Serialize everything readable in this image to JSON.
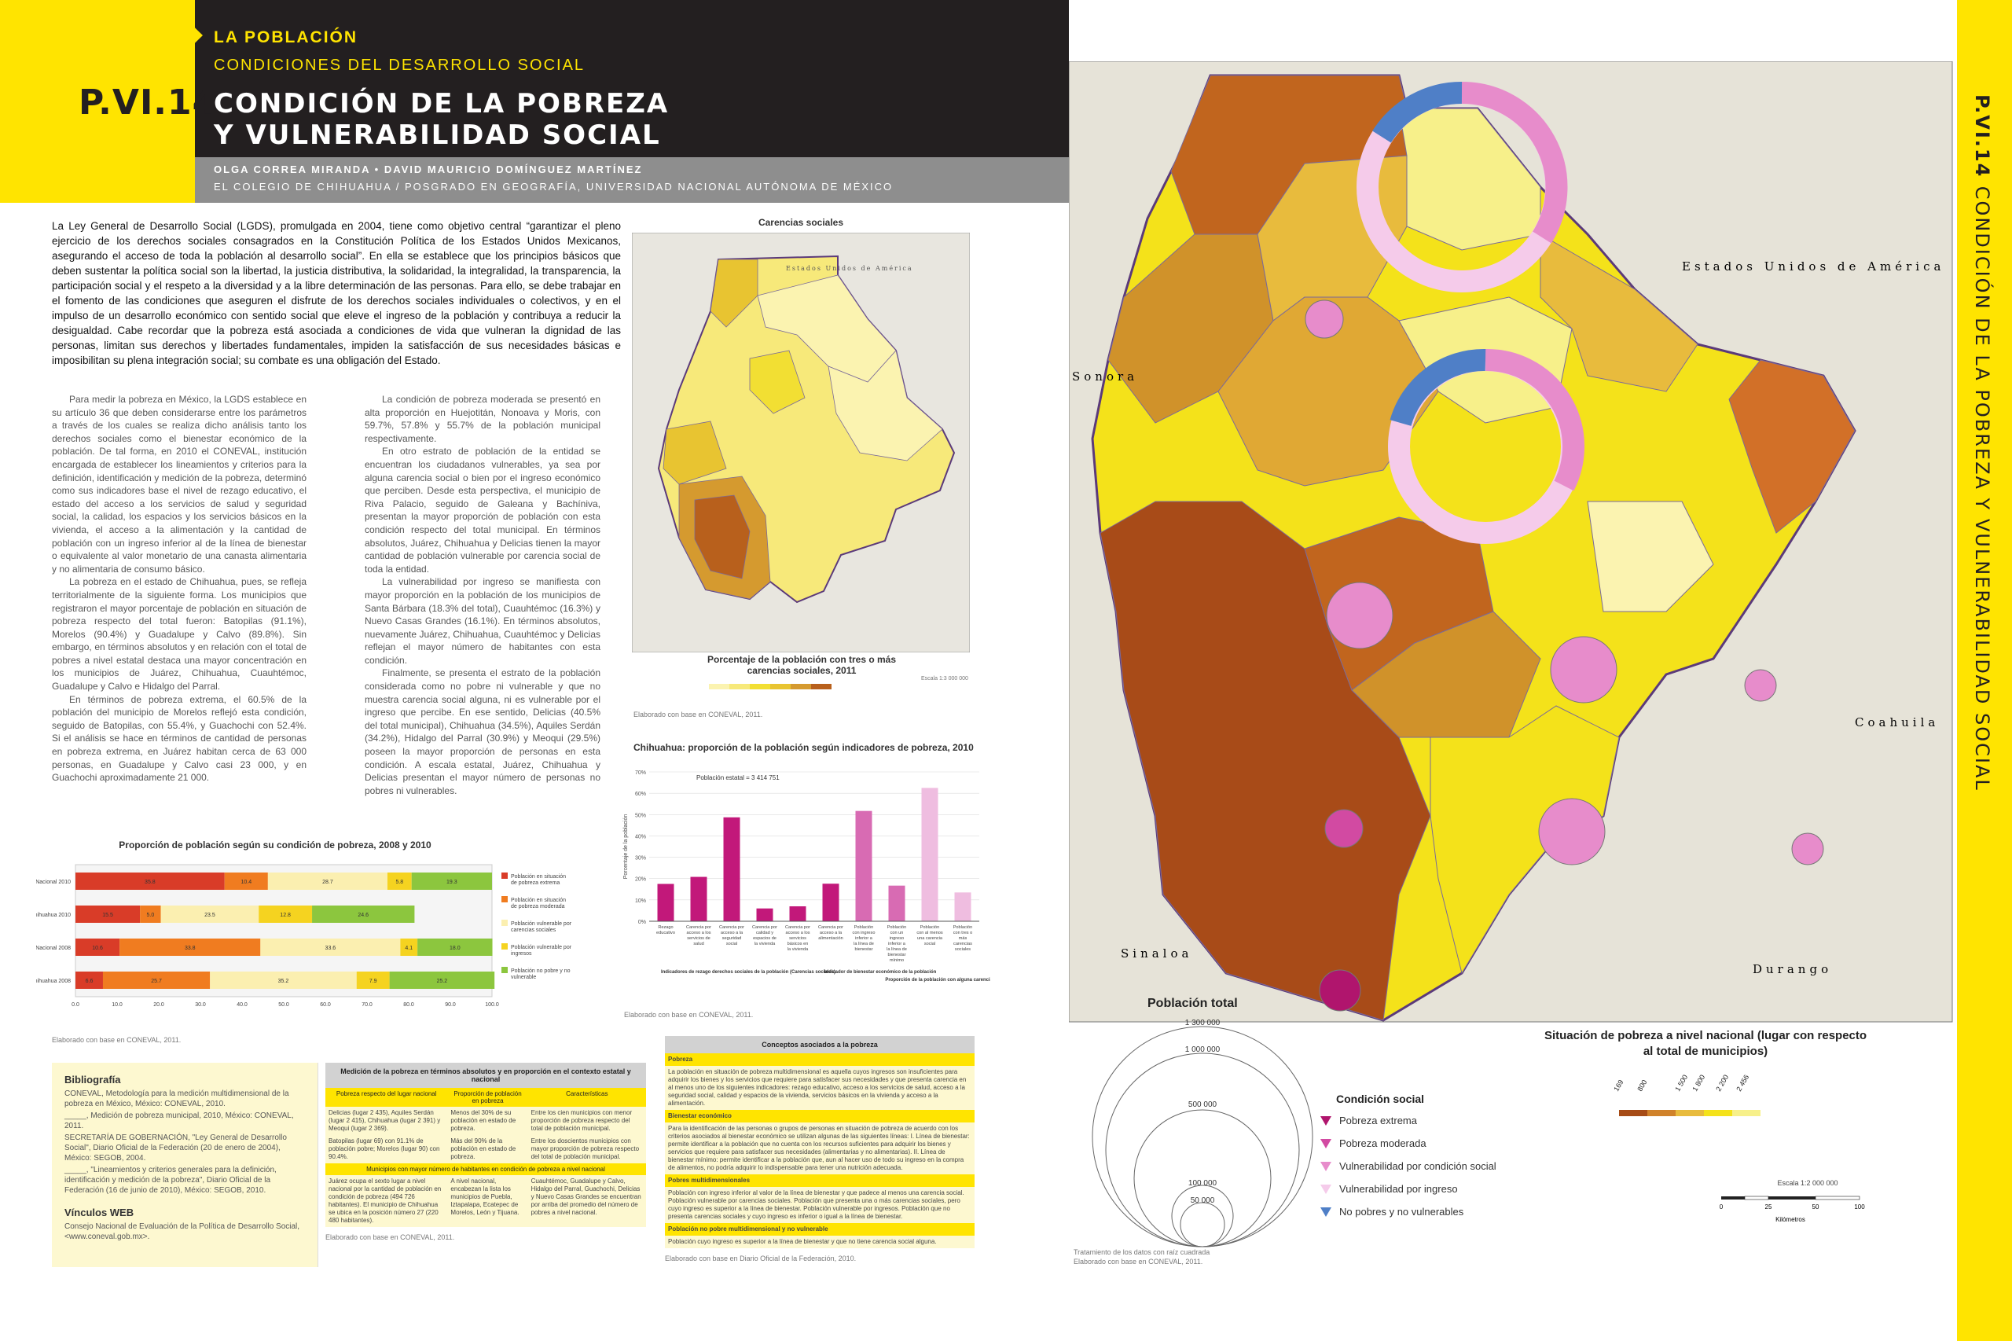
{
  "header": {
    "section": "LA POBLACIÓN",
    "subsection": "CONDICIONES DEL DESARROLLO SOCIAL",
    "code": "P.VI.14",
    "title_line1": "CONDICIÓN DE LA POBREZA",
    "title_line2": "Y VULNERABILIDAD SOCIAL",
    "authors": "OLGA CORREA MIRANDA • DAVID MAURICIO DOMÍNGUEZ MARTÍNEZ",
    "institution": "EL COLEGIO DE CHIHUAHUA / POSGRADO EN GEOGRAFÍA, UNIVERSIDAD NACIONAL AUTÓNOMA DE MÉXICO",
    "side_code": "P.VI.14",
    "side_title": "CONDICIÓN DE LA POBREZA Y VULNERABILIDAD SOCIAL"
  },
  "text": {
    "intro": "La Ley General de Desarrollo Social (LGDS), promulgada en 2004, tiene como objetivo central “garantizar el pleno ejercicio de los derechos sociales consagrados en la Constitución Política de los Estados Unidos Mexicanos, asegurando el acceso de toda la población al desarrollo social”. En ella se establece que los principios básicos que deben sustentar la política social son la libertad, la justicia distributiva, la solidaridad, la integralidad, la transparencia, la participación social y el respeto a la diversidad y a la libre determinación de las personas. Para ello, se debe trabajar en el fomento de las condiciones que aseguren el disfrute de los derechos sociales individuales o colectivos, y en el impulso de un desarrollo económico con sentido social que eleve el ingreso de la población y contribuya a reducir la desigualdad. Cabe recordar que la pobreza está asociada a condiciones de vida que vulneran la dignidad de las personas, limitan sus derechos y libertades fundamentales, impiden la satisfacción de sus necesidades básicas e imposibilitan su plena integración social; su combate es una obligación del Estado.",
    "colA_p1": "Para medir la pobreza en México, la LGDS establece en su artículo 36 que deben considerarse entre los parámetros a través de los cuales se realiza dicho análisis tanto los derechos sociales como el bienestar económico de la población. De tal forma, en 2010 el CONEVAL, institución encargada de establecer los lineamientos y criterios para la definición, identificación y medición de la pobreza, determinó como sus indicadores base el nivel de rezago educativo, el estado del acceso a los servicios de salud y seguridad social, la calidad, los espacios y los servicios básicos en la vivienda, el acceso a la alimentación y la cantidad de población con un ingreso inferior al de la línea de bienestar o equivalente al valor monetario de una canasta alimentaria y no alimentaria de consumo básico.",
    "colA_p2": "La pobreza en el estado de Chihuahua, pues, se refleja territorialmente de la siguiente forma. Los municipios que registraron el mayor porcentaje de población en situación de pobreza respecto del total fueron: Batopilas (91.1%), Morelos (90.4%) y Guadalupe y Calvo (89.8%). Sin embargo, en términos absolutos y en relación con el total de pobres a nivel estatal destaca una mayor concentración en los municipios de Juárez, Chihuahua, Cuauhtémoc, Guadalupe y Calvo e Hidalgo del Parral.",
    "colA_p3": "En términos de pobreza extrema, el 60.5% de la población del municipio de Morelos reflejó esta condición, seguido de Batopilas, con 55.4%, y Guachochi con 52.4%. Si el análisis se hace en términos de cantidad de personas en pobreza extrema, en Juárez habitan cerca de 63 000 personas, en Guadalupe y Calvo casi 23 000, y en Guachochi aproximadamente 21 000.",
    "colB_p1": "La condición de pobreza moderada se presentó en alta proporción en Huejotitán, Nonoava y Moris, con 59.7%, 57.8% y 55.7% de la población municipal respectivamente.",
    "colB_p2": "En otro estrato de población de la entidad se encuentran los ciudadanos vulnerables, ya sea por alguna carencia social o bien por el ingreso económico que perciben. Desde esta perspectiva, el municipio de Riva Palacio, seguido de Galeana y Bachíniva, presentan la mayor proporción de población con esta condición respecto del total municipal. En términos absolutos, Juárez, Chihuahua y Delicias tienen la mayor cantidad de población vulnerable por carencia social de toda la entidad.",
    "colB_p3": "La vulnerabilidad por ingreso se manifiesta con mayor proporción en la población de los municipios de Santa Bárbara (18.3% del total), Cuauhtémoc (16.3%) y Nuevo Casas Grandes (16.1%). En términos absolutos, nuevamente Juárez, Chihuahua, Cuauhtémoc y Delicias reflejan el mayor número de habitantes con esta condición.",
    "colB_p4": "Finalmente, se presenta el estrato de la población considerada como no pobre ni vulnerable y que no muestra carencia social alguna, ni es vulnerable por el ingreso que percibe. En ese sentido, Delicias (40.5% del total municipal), Chihuahua (34.5%), Aquiles Serdán (34.2%), Hidalgo del Parral (30.9%) y Meoqui (29.5%) poseen la mayor proporción de personas en esta condición. A escala estatal, Juárez, Chihuahua y Delicias presentan el mayor número de personas no pobres ni vulnerables."
  },
  "small_map": {
    "title": "Carencias sociales",
    "legend_title": "Porcentaje de la población con tres o más carencias sociales, 2011",
    "country_label": "Estados Unidos de América",
    "scale_label": "Escala 1:3 000 000",
    "caption": "Elaborado con base en CONEVAL, 2011.",
    "colors": [
      "#fbf3b0",
      "#f7e97a",
      "#f2df33",
      "#e8c431",
      "#d59a2f",
      "#b8601c"
    ]
  },
  "chart_data": [
    {
      "type": "bar",
      "title": "Chihuahua: proporción de la población según indicadores de pobreza, 2010",
      "annotation": "Población estatal = 3 414 751",
      "ylabel": "Porcentaje de la población",
      "ylim": [
        0,
        70
      ],
      "yticks": [
        "0%",
        "10%",
        "20%",
        "30%",
        "40%",
        "50%",
        "60%",
        "70%"
      ],
      "categories": [
        "Rezago educativo",
        "Carencia por acceso a los servicios de salud",
        "Carencia por acceso a la seguridad social",
        "Carencia por calidad y espacios de la vivienda",
        "Carencia por acceso a los servicios básicos en la vivienda",
        "Carencia por acceso a la alimentación",
        "Población con ingreso inferior a la línea de bienestar",
        "Población con un ingreso inferior a la línea de bienestar mínimo",
        "Población con al menos una carencia social",
        "Población con tres o más carencias sociales"
      ],
      "values": [
        17.5,
        20.8,
        48.7,
        6.0,
        7.0,
        17.6,
        51.7,
        16.7,
        62.5,
        13.5
      ],
      "colors": [
        "#c2187a",
        "#c2187a",
        "#c2187a",
        "#c2187a",
        "#c2187a",
        "#c2187a",
        "#d86bb3",
        "#d86bb3",
        "#efbde0",
        "#efbde0"
      ],
      "group_labels": [
        "Indicadores de rezago derechos sociales de la población (Carencias sociales)",
        "Indicador de bienestar económico de la población",
        "Proporción de la población con alguna carencia social"
      ],
      "caption": "Elaborado con base en CONEVAL, 2011."
    },
    {
      "type": "bar",
      "orientation": "horizontal-stacked",
      "title": "Proporción de población según su condición de pobreza, 2008 y 2010",
      "categories": [
        "Nacional 2010",
        "Chihuahua 2010",
        "Nacional 2008",
        "Chihuahua 2008"
      ],
      "series": [
        {
          "name": "Población en situación de pobreza extrema",
          "color": "#d93c28",
          "values": [
            35.8,
            15.5,
            10.6,
            6.6
          ]
        },
        {
          "name": "Población en situación de pobreza moderada",
          "color": "#f07c20",
          "values": [
            10.4,
            5.0,
            33.8,
            25.7
          ]
        },
        {
          "name": "Población vulnerable por carencias sociales",
          "color": "#fbefb0",
          "values": [
            28.7,
            23.5,
            33.6,
            35.2
          ]
        },
        {
          "name": "Población vulnerable por ingresos",
          "color": "#f5d320",
          "values": [
            5.8,
            12.8,
            4.1,
            7.9
          ]
        },
        {
          "name": "Población no pobre y no vulnerable",
          "color": "#8cc63e",
          "values": [
            19.3,
            24.6,
            18.0,
            25.2
          ]
        }
      ],
      "xlim": [
        0,
        100
      ],
      "xticks": [
        "0.0",
        "10.0",
        "20.0",
        "30.0",
        "40.0",
        "50.0",
        "60.0",
        "70.0",
        "80.0",
        "90.0",
        "100.0"
      ],
      "caption": "Elaborado con base en CONEVAL, 2011."
    }
  ],
  "bibliography": {
    "title": "Bibliografía",
    "items": [
      "CONEVAL, Metodología para la medición multidimensional de la pobreza en México, México: CONEVAL, 2010.",
      "_____, Medición de pobreza municipal, 2010, México: CONEVAL, 2011.",
      "SECRETARÍA DE GOBERNACIÓN, \"Ley General de Desarrollo Social\", Diario Oficial de la Federación (20 de enero de 2004), México: SEGOB, 2004.",
      "_____, \"Lineamientos y criterios generales para la definición, identificación y medición de la pobreza\", Diario Oficial de la Federación (16 de junio de 2010), México: SEGOB, 2010."
    ],
    "links_title": "Vínculos WEB",
    "links": [
      "Consejo Nacional de Evaluación de la Política de Desarrollo Social, <www.coneval.gob.mx>."
    ]
  },
  "table_medicion": {
    "title": "Medición de la pobreza en términos absolutos y en proporción en el contexto estatal y nacional",
    "headers": [
      "Pobreza respecto del lugar nacional",
      "Proporción de población en pobreza",
      "Características"
    ],
    "rows": [
      [
        "Delicias (lugar 2 435), Aquiles Serdán (lugar 2 415), Chihuahua (lugar 2 391) y Meoqui (lugar 2 369).",
        "Menos del 30% de su población en estado de pobreza.",
        "Entre los cien municipios con menor proporción de pobreza respecto del total de población municipal."
      ],
      [
        "Batopilas (lugar 69) con 91.1% de población pobre; Morelos (lugar 90) con 90.4%.",
        "Más del 90% de la población en estado de pobreza.",
        "Entre los doscientos municipios con mayor proporción de pobreza respecto del total de población municipal."
      ]
    ],
    "subheader": "Municipios con mayor número de habitantes en condición de pobreza a nivel nacional",
    "rows2": [
      [
        "Juárez ocupa el sexto lugar a nivel nacional por la cantidad de población en condición de pobreza (494 726 habitantes). El municipio de Chihuahua se ubica en la posición número 27 (220 480 habitantes).",
        "A nivel nacional, encabezan la lista los municipios de Puebla, Iztapalapa, Ecatepec de Morelos, León y Tijuana.",
        "Cuauhtémoc, Guadalupe y Calvo, Hidalgo del Parral, Guachochi, Delicias y Nuevo Casas Grandes se encuentran por arriba del promedio del número de pobres a nivel nacional."
      ]
    ],
    "caption": "Elaborado con base en CONEVAL, 2011."
  },
  "table_conceptos": {
    "title": "Conceptos asociados a la pobreza",
    "sections": [
      {
        "name": "Pobreza",
        "text": "La población en situación de pobreza multidimensional es aquella cuyos ingresos son insuficientes para adquirir los bienes y los servicios que requiere para satisfacer sus necesidades y que presenta carencia en al menos uno de los siguientes indicadores: rezago educativo, acceso a los servicios de salud, acceso a la seguridad social, calidad y espacios de la vivienda, servicios básicos en la vivienda y acceso a la alimentación."
      },
      {
        "name": "Bienestar económico",
        "text": "Para la identificación de las personas o grupos de personas en situación de pobreza de acuerdo con los criterios asociados al bienestar económico se utilizan algunas de las siguientes líneas: I. Línea de bienestar: permite identificar a la población que no cuenta con los recursos suficientes para adquirir los bienes y servicios que requiere para satisfacer sus necesidades (alimentarias y no alimentarias). II. Línea de bienestar mínimo: permite identificar a la población que, aun al hacer uso de todo su ingreso en la compra de alimentos, no podría adquirir lo indispensable para tener una nutrición adecuada."
      },
      {
        "name": "Pobres multidimensionales",
        "text": "Población con ingreso inferior al valor de la línea de bienestar y que padece al menos una carencia social. Población vulnerable por carencias sociales. Población que presenta una o más carencias sociales, pero cuyo ingreso es superior a la línea de bienestar. Población vulnerable por ingresos. Población que no presenta carencias sociales y cuyo ingreso es inferior o igual a la línea de bienestar."
      },
      {
        "name": "Población no pobre multidimensional y no vulnerable",
        "text": "Población cuyo ingreso es superior a la línea de bienestar y que no tiene carencia social alguna."
      }
    ],
    "caption": "Elaborado con base en Diario Oficial de la Federación, 2010."
  },
  "main_map": {
    "labels": {
      "usa": "Estados Unidos de América",
      "sonora": "Sonora",
      "coahuila": "Coahuila",
      "sinaloa": "Sinaloa",
      "durango": "Durango"
    },
    "legend_pop_title": "Población total",
    "legend_pop_values": [
      "1 300 000",
      "1 000 000",
      "500 000",
      "100 000",
      "50 000"
    ],
    "legend_cond_title": "Condición social",
    "legend_cond": [
      {
        "label": "Pobreza extrema",
        "color": "#b0156d"
      },
      {
        "label": "Pobreza moderada",
        "color": "#d24aa2"
      },
      {
        "label": "Vulnerabilidad por condición social",
        "color": "#e78ccb"
      },
      {
        "label": "Vulnerabilidad por ingreso",
        "color": "#f5cbea"
      },
      {
        "label": "No pobres y no vulnerables",
        "color": "#4f7fc7"
      }
    ],
    "legend_nat_title": "Situación de pobreza a nivel nacional (lugar con respecto al total de municipios)",
    "legend_nat_ticks": [
      "169",
      "800",
      "1 500",
      "1 800",
      "2 200",
      "2 456"
    ],
    "legend_nat_colors": [
      "#a64b16",
      "#d0822a",
      "#e8bb3d",
      "#f4e21a",
      "#f7f08a"
    ],
    "scale": "Escala 1:2 000 000",
    "scale_ticks": [
      "0",
      "25",
      "50",
      "100"
    ],
    "scale_unit": "Kilómetros",
    "note": "Tratamiento de los datos con raíz cuadrada",
    "caption": "Elaborado con base en CONEVAL, 2011."
  }
}
